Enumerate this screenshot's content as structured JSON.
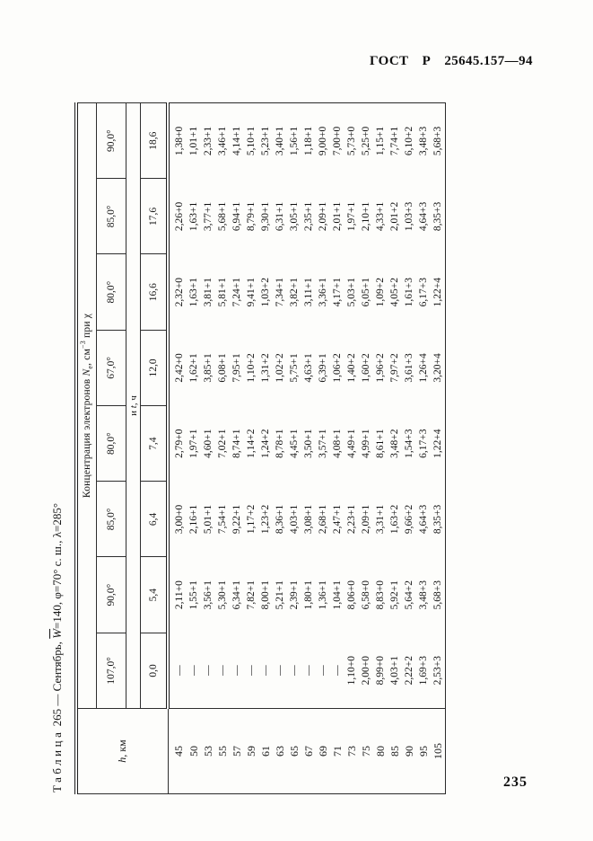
{
  "page": {
    "gost_header": "ГОСТ Р 25645.157—94",
    "page_number": "235"
  },
  "table_title": {
    "word": "Таблица",
    "rest1": " 265 — Сентябрь, ",
    "w": "W",
    "rest2": "=140, φ=70° с. ш., λ=285°"
  },
  "table": {
    "h_header": {
      "p1": "h",
      "p2": ", км"
    },
    "span_header": {
      "p1": "Концентрация электронов ",
      "n": "N",
      "sub": "e",
      "p2": ", см",
      "sup": "−3",
      "p3": " при χ"
    },
    "t_label": {
      "p1": "и ",
      "t": "t",
      "p2": ", ч"
    },
    "chi_values": [
      "107,0°",
      "90,0°",
      "85,0°",
      "80,0°",
      "67,0°",
      "80,0°",
      "85,0°",
      "90,0°"
    ],
    "t_values": [
      "0,0",
      "5,4",
      "6,4",
      "7,4",
      "12,0",
      "16,6",
      "17,6",
      "18,6"
    ],
    "rows": [
      {
        "h": "45",
        "v": [
          "—",
          "2,11+0",
          "3,00+0",
          "2,79+0",
          "2,42+0",
          "2,32+0",
          "2,26+0",
          "1,38+0"
        ]
      },
      {
        "h": "50",
        "v": [
          "—",
          "1,55+1",
          "2,16+1",
          "1,97+1",
          "1,62+1",
          "1,63+1",
          "1,63+1",
          "1,01+1"
        ]
      },
      {
        "h": "53",
        "v": [
          "—",
          "3,56+1",
          "5,01+1",
          "4,60+1",
          "3,85+1",
          "3,81+1",
          "3,77+1",
          "2,33+1"
        ]
      },
      {
        "h": "55",
        "v": [
          "—",
          "5,30+1",
          "7,54+1",
          "7,02+1",
          "6,08+1",
          "5,81+1",
          "5,68+1",
          "3,46+1"
        ]
      },
      {
        "h": "57",
        "v": [
          "—",
          "6,34+1",
          "9,22+1",
          "8,74+1",
          "7,95+1",
          "7,24+1",
          "6,94+1",
          "4,14+1"
        ]
      },
      {
        "h": "59",
        "v": [
          "—",
          "7,82+1",
          "1,17+2",
          "1,14+2",
          "1,10+2",
          "9,41+1",
          "8,79+1",
          "5,10+1"
        ]
      },
      {
        "h": "61",
        "v": [
          "—",
          "8,00+1",
          "1,23+2",
          "1,24+2",
          "1,31+2",
          "1,03+2",
          "9,30+1",
          "5,23+1"
        ]
      },
      {
        "h": "63",
        "v": [
          "—",
          "5,21+1",
          "8,36+1",
          "8,78+1",
          "1,02+2",
          "7,34+1",
          "6,31+1",
          "3,40+1"
        ]
      },
      {
        "h": "65",
        "v": [
          "—",
          "2,39+1",
          "4,03+1",
          "4,45+1",
          "5,75+1",
          "3,82+1",
          "3,05+1",
          "1,56+1"
        ]
      },
      {
        "h": "67",
        "v": [
          "—",
          "1,80+1",
          "3,08+1",
          "3,50+1",
          "4,63+1",
          "3,11+1",
          "2,35+1",
          "1,18+1"
        ]
      },
      {
        "h": "69",
        "v": [
          "—",
          "1,36+1",
          "2,68+1",
          "3,57+1",
          "6,39+1",
          "3,36+1",
          "2,09+1",
          "9,00+0"
        ]
      },
      {
        "h": "71",
        "v": [
          "—",
          "1,04+1",
          "2,47+1",
          "4,08+1",
          "1,06+2",
          "4,17+1",
          "2,01+1",
          "7,00+0"
        ]
      },
      {
        "h": "73",
        "v": [
          "1,10+0",
          "8,06+0",
          "2,23+1",
          "4,49+1",
          "1,40+2",
          "5,03+1",
          "1,97+1",
          "5,73+0"
        ]
      },
      {
        "h": "75",
        "v": [
          "2,00+0",
          "6,58+0",
          "2,09+1",
          "4,99+1",
          "1,60+2",
          "6,05+1",
          "2,10+1",
          "5,25+0"
        ]
      },
      {
        "h": "80",
        "v": [
          "8,99+0",
          "8,83+0",
          "3,31+1",
          "8,61+1",
          "1,96+2",
          "1,09+2",
          "4,33+1",
          "1,15+1"
        ]
      },
      {
        "h": "85",
        "v": [
          "4,03+1",
          "5,92+1",
          "1,63+2",
          "3,48+2",
          "7,97+2",
          "4,05+2",
          "2,01+2",
          "7,74+1"
        ]
      },
      {
        "h": "90",
        "v": [
          "2,22+2",
          "5,64+2",
          "9,66+2",
          "1,54+3",
          "3,61+3",
          "1,61+3",
          "1,03+3",
          "6,10+2"
        ]
      },
      {
        "h": "95",
        "v": [
          "1,69+3",
          "3,48+3",
          "4,64+3",
          "6,17+3",
          "1,26+4",
          "6,17+3",
          "4,64+3",
          "3,48+3"
        ]
      },
      {
        "h": "105",
        "v": [
          "2,53+3",
          "5,68+3",
          "8,35+3",
          "1,22+4",
          "3,20+4",
          "1,22+4",
          "8,35+3",
          "5,68+3"
        ]
      }
    ]
  }
}
